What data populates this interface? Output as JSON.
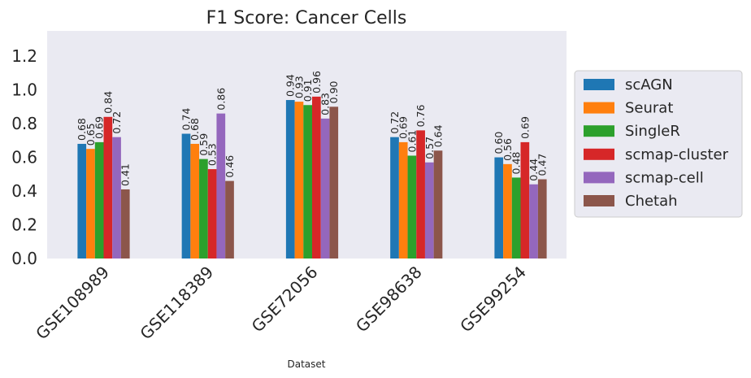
{
  "chart_data": {
    "type": "bar",
    "title": "F1 Score: Cancer Cells",
    "xlabel": "Dataset",
    "ylabel": "",
    "ylim": [
      0,
      1.35
    ],
    "yticks": [
      "0.0",
      "0.2",
      "0.4",
      "0.6",
      "0.8",
      "1.0",
      "1.2"
    ],
    "categories": [
      "GSE108989",
      "GSE118389",
      "GSE72056",
      "GSE98638",
      "GSE99254"
    ],
    "grid": false,
    "legend_position": "right",
    "series": [
      {
        "name": "scAGN",
        "color": "#1f77b4",
        "values": [
          0.68,
          0.74,
          0.94,
          0.72,
          0.6
        ],
        "labels": [
          "0.68",
          "0.74",
          "0.94",
          "0.72",
          "0.60"
        ]
      },
      {
        "name": "Seurat",
        "color": "#ff7f0e",
        "values": [
          0.65,
          0.68,
          0.93,
          0.69,
          0.56
        ],
        "labels": [
          "0.65",
          "0.68",
          "0.93",
          "0.69",
          "0.56"
        ]
      },
      {
        "name": "SingleR",
        "color": "#2ca02c",
        "values": [
          0.69,
          0.59,
          0.91,
          0.61,
          0.48
        ],
        "labels": [
          "0.69",
          "0.59",
          "0.91",
          "0.61",
          "0.48"
        ]
      },
      {
        "name": "scmap-cluster",
        "color": "#d62728",
        "values": [
          0.84,
          0.53,
          0.96,
          0.76,
          0.69
        ],
        "labels": [
          "0.84",
          "0.53",
          "0.96",
          "0.76",
          "0.69"
        ]
      },
      {
        "name": "scmap-cell",
        "color": "#9467bd",
        "values": [
          0.72,
          0.86,
          0.83,
          0.57,
          0.44
        ],
        "labels": [
          "0.72",
          "0.86",
          "0.83",
          "0.57",
          "0.44"
        ]
      },
      {
        "name": "Chetah",
        "color": "#8c564b",
        "values": [
          0.41,
          0.46,
          0.9,
          0.64,
          0.47
        ],
        "labels": [
          "0.41",
          "0.46",
          "0.90",
          "0.64",
          "0.47"
        ]
      }
    ]
  }
}
